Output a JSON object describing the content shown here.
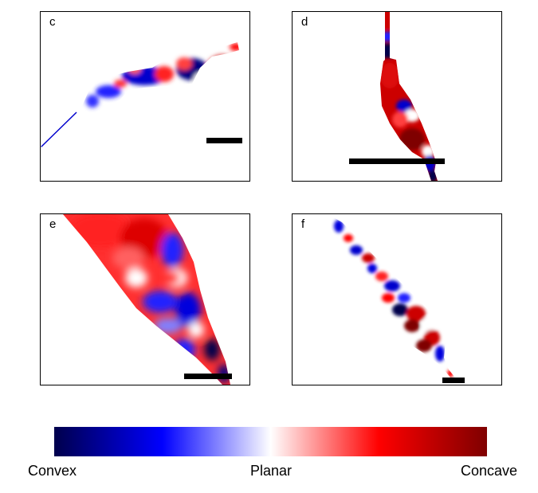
{
  "panels": [
    {
      "id": "c",
      "label": "c"
    },
    {
      "id": "d",
      "label": "d"
    },
    {
      "id": "e",
      "label": "e"
    },
    {
      "id": "f",
      "label": "f"
    }
  ],
  "colorbar": {
    "stops": [
      "#00004c",
      "#0000ff",
      "#ffffff",
      "#ff0000",
      "#7f0000"
    ],
    "label_left": "Convex",
    "label_center": "Planar",
    "label_right": "Concave"
  }
}
